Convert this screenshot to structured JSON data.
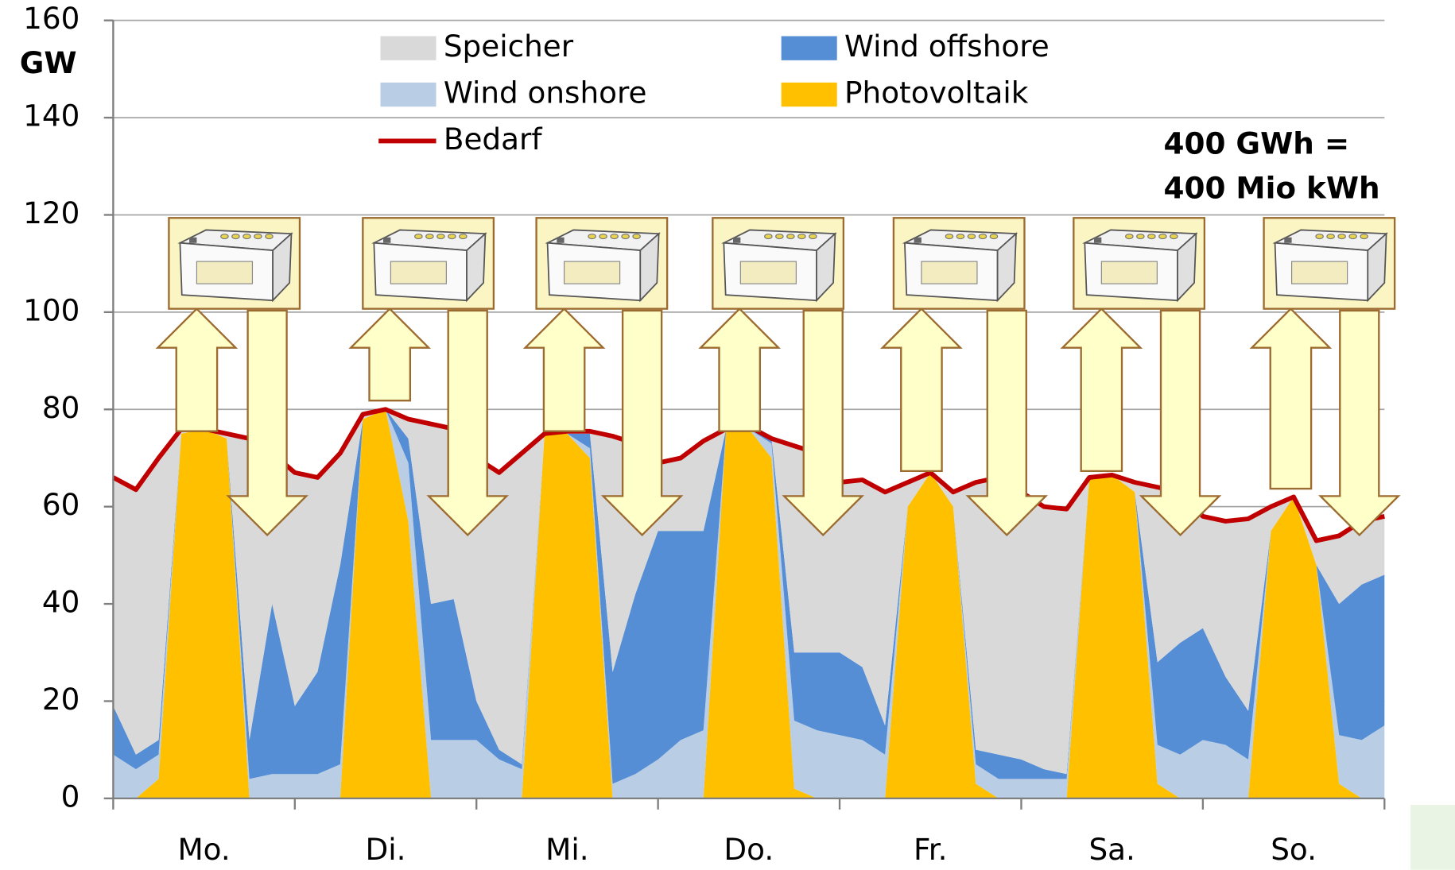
{
  "chart_data": {
    "type": "area",
    "stacked": true,
    "y_label": "GW",
    "annotation": [
      "400 GWh =",
      "400 Mio kWh"
    ],
    "categories": [
      "Mo.",
      "Di.",
      "Mi.",
      "Do.",
      "Fr.",
      "Sa.",
      "So."
    ],
    "x": [
      0,
      3,
      6,
      9,
      12,
      15,
      18,
      21,
      24,
      27,
      30,
      33,
      36,
      39,
      42,
      45,
      48,
      51,
      54,
      57,
      60,
      63,
      66,
      69,
      72,
      75,
      78,
      81,
      84,
      87,
      90,
      93,
      96,
      99,
      102,
      105,
      108,
      111,
      114,
      117,
      120,
      123,
      126,
      129,
      132,
      135,
      138,
      141,
      144,
      147,
      150,
      153,
      156,
      159,
      162,
      165,
      168
    ],
    "xlim": [
      0,
      168
    ],
    "ylim": [
      0,
      160
    ],
    "yticks": [
      0,
      20,
      40,
      60,
      80,
      100,
      120,
      140,
      160
    ],
    "grid": true,
    "series": [
      {
        "name": "Photovoltaik",
        "color": "#ffc000",
        "kind": "area",
        "values": [
          0,
          0,
          4,
          75,
          76,
          74,
          0,
          0,
          0,
          0,
          0,
          78,
          80,
          57,
          0,
          0,
          0,
          0,
          0,
          75,
          75,
          70,
          0,
          0,
          0,
          0,
          0,
          76,
          76,
          70,
          2,
          0,
          0,
          0,
          0,
          60,
          67,
          60,
          3,
          0,
          0,
          0,
          0,
          66,
          66.5,
          63,
          3,
          0,
          0,
          0,
          0,
          55,
          62,
          48,
          3,
          0,
          0
        ]
      },
      {
        "name": "Wind onshore",
        "color": "#b9cde5",
        "kind": "area",
        "values": [
          9,
          6,
          5,
          0,
          0,
          0,
          4,
          5,
          5,
          5,
          7,
          0,
          0,
          12,
          12,
          12,
          12,
          8,
          6,
          0,
          0,
          2,
          3,
          5,
          8,
          12,
          14,
          0,
          0,
          3,
          14,
          14,
          13,
          12,
          9,
          0,
          0,
          0,
          4,
          4,
          4,
          4,
          4,
          0,
          0,
          0,
          8,
          9,
          12,
          11,
          8,
          0,
          0,
          0,
          10,
          12,
          15
        ]
      },
      {
        "name": "Wind offshore",
        "color": "#558ed5",
        "kind": "area",
        "values": [
          10,
          3,
          3,
          0,
          0,
          0,
          8,
          35,
          14,
          21,
          41,
          0,
          0,
          5,
          28,
          29,
          8,
          2,
          1,
          0,
          0,
          3,
          23,
          37,
          47,
          43,
          41,
          0,
          0,
          1,
          14,
          16,
          17,
          15,
          6,
          0,
          0,
          0,
          3,
          5,
          4,
          2,
          1,
          0,
          0,
          0,
          17,
          23,
          23,
          14,
          10,
          0,
          0,
          0,
          27,
          32,
          31
        ]
      },
      {
        "name": "Speicher",
        "color": "#d9d9d9",
        "kind": "area",
        "values": [
          47,
          54.5,
          58,
          1,
          0,
          1,
          62,
          31,
          48,
          40,
          23,
          1,
          0,
          4,
          37,
          35,
          50,
          57,
          64,
          0,
          0.5,
          0.5,
          48.5,
          31,
          14,
          15,
          18.5,
          0,
          0.5,
          0,
          42.5,
          41,
          35,
          38.5,
          48,
          5,
          0,
          3,
          55,
          57,
          55,
          54,
          54.5,
          0,
          0,
          2,
          36,
          31,
          23,
          32,
          39.5,
          5,
          0,
          5,
          14,
          13,
          12
        ]
      },
      {
        "name": "Bedarf",
        "color": "#c00000",
        "kind": "line",
        "values": [
          66,
          63.5,
          70,
          76,
          76,
          75,
          74,
          71,
          67,
          66,
          71,
          79,
          80,
          78,
          77,
          76,
          70,
          67,
          71,
          75,
          75.5,
          75.5,
          74.5,
          73,
          69,
          70,
          73.5,
          76,
          76.5,
          74,
          72.5,
          71,
          65,
          65.5,
          63,
          65,
          67,
          63,
          65,
          66,
          63,
          60,
          59.5,
          66,
          66.5,
          65,
          64,
          63,
          58,
          57,
          57.5,
          60,
          62,
          53,
          54,
          57,
          58
        ]
      }
    ]
  }
}
